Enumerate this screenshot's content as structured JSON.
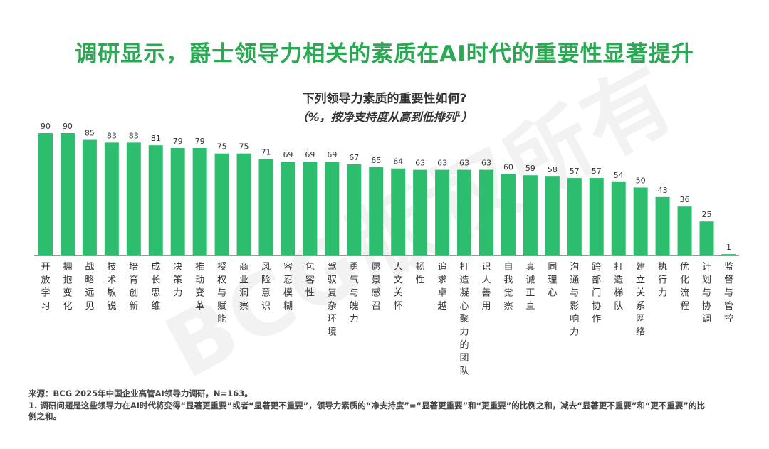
{
  "watermark": "BCG版权所有",
  "header": {
    "title": "调研显示，爵士领导力相关的素质在AI时代的重要性显著提升"
  },
  "chart_data": {
    "type": "bar",
    "title": "下列领导力素质的重要性如何?",
    "subtitle": "（%，按净支持度从高到低排列",
    "subtitle_sup": "1",
    "subtitle_close": "）",
    "categories": [
      "开放学习",
      "拥抱变化",
      "战略远见",
      "技术敏锐",
      "培育创新",
      "成长思维",
      "决策力",
      "推动变革",
      "授权与赋能",
      "商业洞察",
      "风险意识",
      "容忍模糊",
      "包容性",
      "驾驭复杂环境",
      "勇气与魄力",
      "愿景感召",
      "人文关怀",
      "韧性",
      "追求卓越",
      "打造凝心聚力的团队",
      "识人善用",
      "自我觉察",
      "真诚正直",
      "同理心",
      "沟通与影响力",
      "跨部门协作",
      "打造梯队",
      "建立关系网络",
      "执行力",
      "优化流程",
      "计划与协调",
      "监督与管控"
    ],
    "values": [
      90,
      90,
      85,
      83,
      83,
      81,
      79,
      79,
      75,
      75,
      71,
      69,
      69,
      69,
      67,
      65,
      64,
      63,
      63,
      63,
      63,
      60,
      59,
      58,
      57,
      57,
      54,
      50,
      43,
      36,
      25,
      1
    ],
    "ylim": [
      0,
      100
    ],
    "bar_color": "#2dbd6e",
    "grid": false
  },
  "footer": {
    "source": "来源：BCG 2025年中国企业高管AI领导力调研，N=163。",
    "note": "1. 调研问题是这些领导力在AI时代将变得“显著更重要”或者“显著更不重要”，领导力素质的“净支持度”=“显著更重要”和“更重要”的比例之和，减去“显著更不重要”和“更不重要”的比例之和。"
  }
}
